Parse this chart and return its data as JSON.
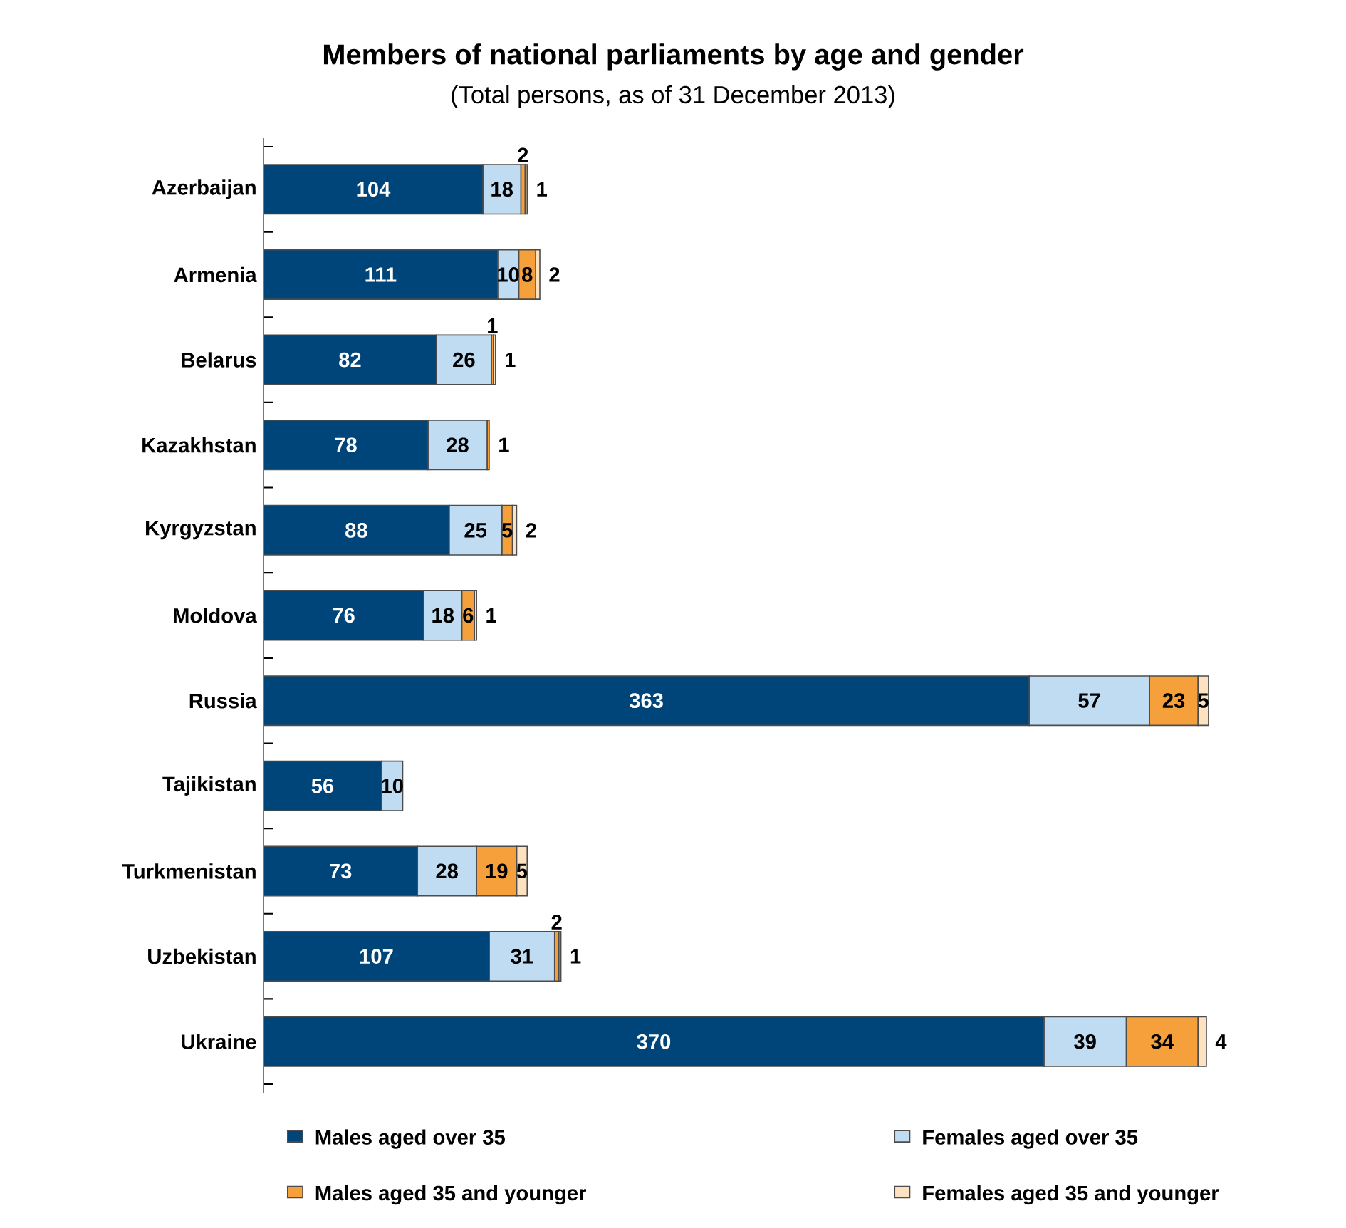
{
  "chart_data": {
    "type": "bar",
    "orientation": "horizontal",
    "stacked": true,
    "title": "Members of national parliaments by age and gender",
    "subtitle": "(Total persons, as of 31 December 2013)",
    "categories": [
      "Azerbaijan",
      "Armenia",
      "Belarus",
      "Kazakhstan",
      "Kyrgyzstan",
      "Moldova",
      "Russia",
      "Tajikistan",
      "Turkmenistan",
      "Uzbekistan",
      "Ukraine"
    ],
    "series": [
      {
        "name": "Males aged over 35",
        "color": "#00457a",
        "values": [
          104,
          111,
          82,
          78,
          88,
          76,
          363,
          56,
          73,
          107,
          370
        ]
      },
      {
        "name": "Females aged over 35",
        "color": "#bfdcf2",
        "values": [
          18,
          10,
          26,
          28,
          25,
          18,
          57,
          10,
          28,
          31,
          39
        ]
      },
      {
        "name": "Males aged 35 and younger",
        "color": "#f5a03a",
        "values": [
          2,
          8,
          1,
          1,
          5,
          6,
          23,
          null,
          19,
          2,
          34
        ]
      },
      {
        "name": "Females aged 35 and younger",
        "color": "#fde2c2",
        "values": [
          1,
          2,
          1,
          null,
          2,
          1,
          5,
          null,
          5,
          1,
          4
        ]
      }
    ],
    "data_labels": true,
    "legend": "bottom"
  }
}
